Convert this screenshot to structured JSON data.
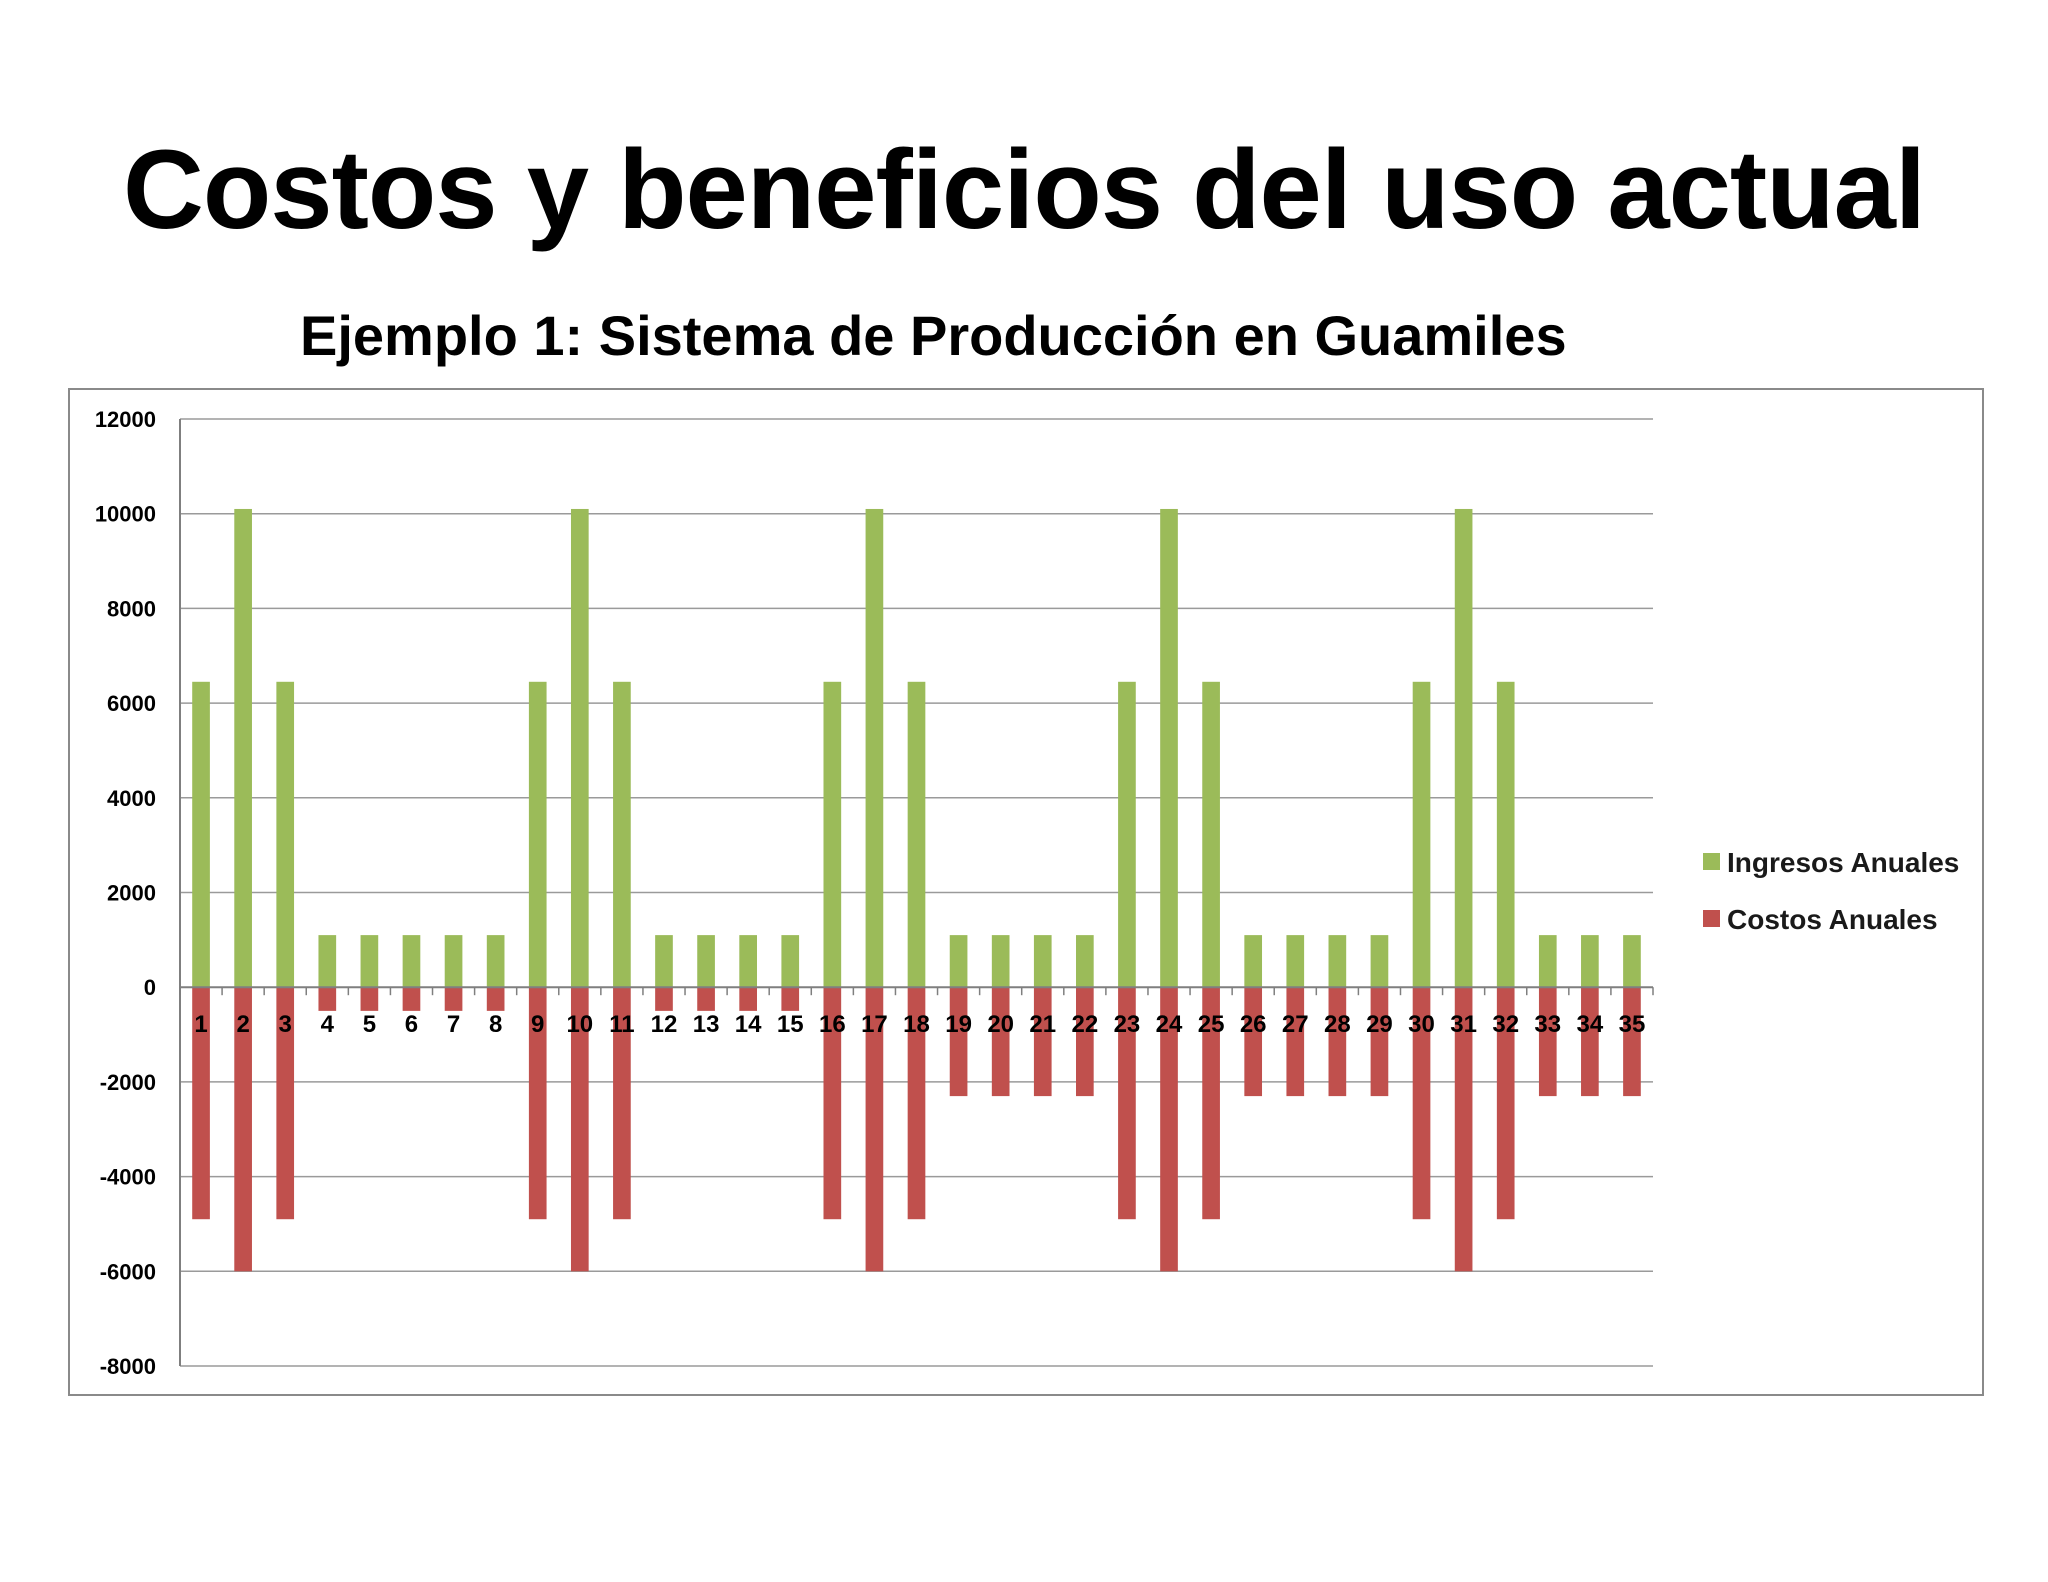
{
  "slide": {
    "title": "Costos y beneficios del uso actual",
    "subtitle": "Ejemplo 1: Sistema de Producción en Guamiles"
  },
  "chart_data": {
    "type": "bar",
    "categories": [
      "1",
      "2",
      "3",
      "4",
      "5",
      "6",
      "7",
      "8",
      "9",
      "10",
      "11",
      "12",
      "13",
      "14",
      "15",
      "16",
      "17",
      "18",
      "19",
      "20",
      "21",
      "22",
      "23",
      "24",
      "25",
      "26",
      "27",
      "28",
      "29",
      "30",
      "31",
      "32",
      "33",
      "34",
      "35"
    ],
    "series": [
      {
        "name": "Ingresos Anuales",
        "color": "#9bbb59",
        "values": [
          6450,
          10100,
          6450,
          1100,
          1100,
          1100,
          1100,
          1100,
          6450,
          10100,
          6450,
          1100,
          1100,
          1100,
          1100,
          6450,
          10100,
          6450,
          1100,
          1100,
          1100,
          1100,
          6450,
          10100,
          6450,
          1100,
          1100,
          1100,
          1100,
          6450,
          10100,
          6450,
          1100,
          1100,
          1100
        ]
      },
      {
        "name": "Costos Anuales",
        "color": "#c0504d",
        "values": [
          -4900,
          -6000,
          -4900,
          -500,
          -500,
          -500,
          -500,
          -500,
          -4900,
          -6000,
          -4900,
          -500,
          -500,
          -500,
          -500,
          -4900,
          -6000,
          -4900,
          -2300,
          -2300,
          -2300,
          -2300,
          -4900,
          -6000,
          -4900,
          -2300,
          -2300,
          -2300,
          -2300,
          -4900,
          -6000,
          -4900,
          -2300,
          -2300,
          -2300
        ]
      }
    ],
    "ylim": [
      -8000,
      12000
    ],
    "yticks": [
      "12000",
      "10000",
      "8000",
      "6000",
      "4000",
      "2000",
      "0",
      "-2000",
      "-4000",
      "-6000",
      "-8000"
    ],
    "grid": true,
    "legend": "right",
    "stacked": true
  }
}
